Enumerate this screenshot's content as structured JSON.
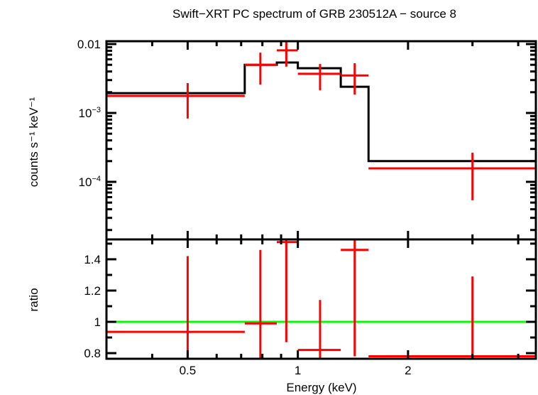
{
  "chart_data": [
    {
      "type": "scatter",
      "panel": "spectrum",
      "title": "Swift−XRT PC spectrum of GRB 230512A − source 8",
      "xlabel": "",
      "ylabel": "counts s⁻¹ keV⁻¹",
      "xscale": "log",
      "yscale": "log",
      "xlim": [
        0.3,
        4.47
      ],
      "ylim": [
        1.46e-05,
        0.011
      ],
      "y_tick_labels": [
        {
          "value": 0.01,
          "text": "0.01"
        },
        {
          "value": 0.001,
          "base": "10",
          "exp": "−3"
        },
        {
          "value": 0.0001,
          "base": "10",
          "exp": "−4"
        }
      ],
      "data_color": "#ff0000",
      "model_color": "#000000",
      "data": [
        {
          "x": 0.5,
          "xlo": 0.3,
          "xhi": 0.716,
          "y": 0.00177,
          "ylo": 0.00083,
          "yhi": 0.00271
        },
        {
          "x": 0.79,
          "xlo": 0.716,
          "xhi": 0.876,
          "y": 0.005,
          "ylo": 0.00258,
          "yhi": 0.0075
        },
        {
          "x": 0.93,
          "xlo": 0.876,
          "xhi": 1.0,
          "y": 0.0081,
          "ylo": 0.0047,
          "yhi": 0.011
        },
        {
          "x": 1.15,
          "xlo": 1.0,
          "xhi": 1.31,
          "y": 0.0037,
          "ylo": 0.00214,
          "yhi": 0.00514
        },
        {
          "x": 1.43,
          "xlo": 1.31,
          "xhi": 1.56,
          "y": 0.0035,
          "ylo": 0.00185,
          "yhi": 0.00527
        },
        {
          "x": 3.0,
          "xlo": 1.56,
          "xhi": 4.47,
          "y": 0.000157,
          "ylo": 5.4e-05,
          "yhi": 0.000265
        }
      ],
      "model": [
        {
          "xlo": 0.3,
          "xhi": 0.716,
          "y": 0.00194
        },
        {
          "xlo": 0.716,
          "xhi": 0.876,
          "y": 0.005
        },
        {
          "xlo": 0.876,
          "xhi": 1.0,
          "y": 0.0054
        },
        {
          "xlo": 1.0,
          "xhi": 1.31,
          "y": 0.00446
        },
        {
          "xlo": 1.31,
          "xhi": 1.56,
          "y": 0.0024
        },
        {
          "xlo": 1.56,
          "xhi": 4.47,
          "y": 0.0002
        }
      ]
    },
    {
      "type": "scatter",
      "panel": "ratio",
      "xlabel": "Energy (keV)",
      "ylabel": "ratio",
      "xscale": "log",
      "xlim": [
        0.3,
        4.47
      ],
      "ylim": [
        0.764,
        1.527
      ],
      "x_ticks": [
        "0.5",
        "1",
        "2"
      ],
      "x_tick_values": [
        0.5,
        1,
        2
      ],
      "y_ticks": [
        "0.8",
        "1",
        "1.2",
        "1.4"
      ],
      "y_tick_values": [
        0.8,
        1,
        1.2,
        1.4
      ],
      "reference_line": 1,
      "reference_color": "#00ff00",
      "data_color": "#ff0000",
      "data": [
        {
          "x": 0.5,
          "xlo": 0.3,
          "xhi": 0.716,
          "y": 0.936,
          "ylo": 0.5,
          "yhi": 1.42
        },
        {
          "x": 0.79,
          "xlo": 0.716,
          "xhi": 0.876,
          "y": 0.99,
          "ylo": 0.5,
          "yhi": 1.46
        },
        {
          "x": 0.93,
          "xlo": 0.876,
          "xhi": 1.0,
          "y": 1.51,
          "ylo": 0.87,
          "yhi": 1.6
        },
        {
          "x": 1.15,
          "xlo": 1.0,
          "xhi": 1.31,
          "y": 0.82,
          "ylo": 0.5,
          "yhi": 1.14
        },
        {
          "x": 1.43,
          "xlo": 1.31,
          "xhi": 1.56,
          "y": 1.46,
          "ylo": 0.78,
          "yhi": 1.6
        },
        {
          "x": 3.0,
          "xlo": 1.56,
          "xhi": 4.47,
          "y": 0.78,
          "ylo": 0.5,
          "yhi": 1.29
        }
      ]
    }
  ]
}
